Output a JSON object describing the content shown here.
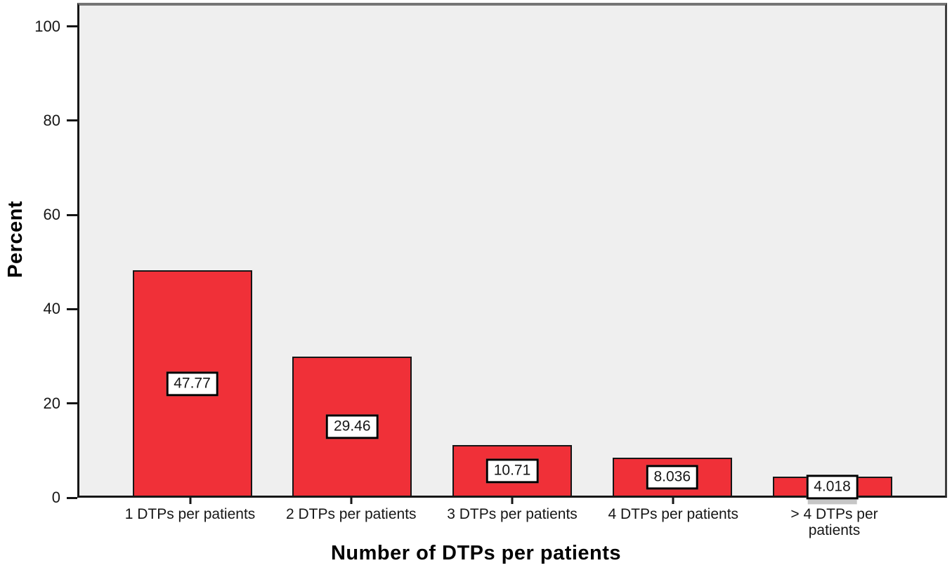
{
  "chart_data": {
    "type": "bar",
    "title": "",
    "xlabel": "Number of DTPs per patients",
    "ylabel": "Percent",
    "categories": [
      "1 DTPs per patients",
      "2 DTPs per patients",
      "3 DTPs per patients",
      "4 DTPs per patients",
      "> 4 DTPs per patients"
    ],
    "values": [
      47.77,
      29.46,
      10.71,
      8.036,
      4.018
    ],
    "value_labels": [
      "47.77",
      "29.46",
      "10.71",
      "8.036",
      "4.018"
    ],
    "y_ticks": [
      0,
      20,
      40,
      60,
      80,
      100
    ],
    "ylim": [
      0,
      105
    ],
    "grid": false,
    "legend": false,
    "colors": {
      "bar_fill": "#f03038",
      "bar_border": "#161616",
      "plot_background": "#efefef",
      "axis_color": "#161616",
      "frame_top_right": "#757575",
      "label_box_background": "#ffffff",
      "label_box_border": "#000000",
      "text_color": "#000000"
    }
  }
}
